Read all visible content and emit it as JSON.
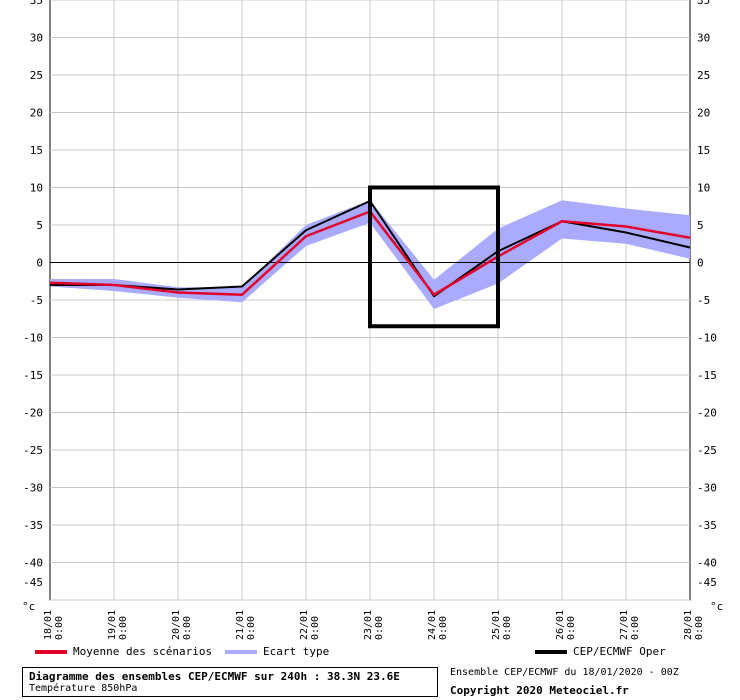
{
  "chart_data": {
    "type": "line",
    "unit": "°c",
    "ylim": [
      -45,
      35
    ],
    "yticks": [
      35,
      30,
      25,
      20,
      15,
      10,
      5,
      0,
      -5,
      -10,
      -15,
      -20,
      -25,
      -30,
      -35,
      -40,
      -45
    ],
    "x": [
      "18/01 0:00",
      "19/01 0:00",
      "20/01 0:00",
      "21/01 0:00",
      "22/01 0:00",
      "23/01 0:00",
      "24/01 0:00",
      "25/01 0:00",
      "26/01 0:00",
      "27/01 0:00",
      "28/01 0:00"
    ],
    "x_date": [
      "18/01",
      "19/01",
      "20/01",
      "21/01",
      "22/01",
      "23/01",
      "24/01",
      "25/01",
      "26/01",
      "27/01",
      "28/01"
    ],
    "x_time": [
      "0:00",
      "0:00",
      "0:00",
      "0:00",
      "0:00",
      "0:00",
      "0:00",
      "0:00",
      "0:00",
      "0:00",
      "0:00"
    ],
    "grid": true,
    "series": [
      {
        "name": "Moyenne des scénarios",
        "color": "#e0002a",
        "values": [
          -2.7,
          -3.0,
          -4.0,
          -4.3,
          3.5,
          6.8,
          -4.3,
          0.8,
          5.5,
          4.8,
          3.3
        ]
      },
      {
        "name": "Ecart type",
        "color": "#aaaaff",
        "type": "band",
        "upper": [
          -2.2,
          -2.2,
          -3.3,
          -3.3,
          5.0,
          8.3,
          -2.3,
          4.5,
          8.3,
          7.2,
          6.3
        ],
        "lower": [
          -3.2,
          -3.8,
          -4.7,
          -5.3,
          2.2,
          5.3,
          -6.2,
          -2.8,
          3.2,
          2.5,
          0.5
        ]
      },
      {
        "name": "CEP/ECMWF Oper",
        "color": "#000000",
        "values": [
          -3.0,
          -3.0,
          -3.6,
          -3.2,
          4.3,
          8.2,
          -4.5,
          1.5,
          5.5,
          4.0,
          2.0
        ]
      }
    ],
    "annotation": {
      "type": "box",
      "x_from": "23/01 0:00",
      "x_to": "25/01 0:00",
      "y_from": -8.5,
      "y_to": 10
    }
  },
  "legend": {
    "mean": "Moyenne des scénarios",
    "spread": "Ecart type",
    "oper": "CEP/ECMWF Oper"
  },
  "footer": {
    "title": "Diagramme des ensembles CEP/ECMWF sur 240h : 38.3N 23.6E",
    "subtitle": "Température 850hPa",
    "ensemble": "Ensemble CEP/ECMWF du 18/01/2020 - 00Z",
    "copyright": "Copyright 2020 Meteociel.fr"
  }
}
